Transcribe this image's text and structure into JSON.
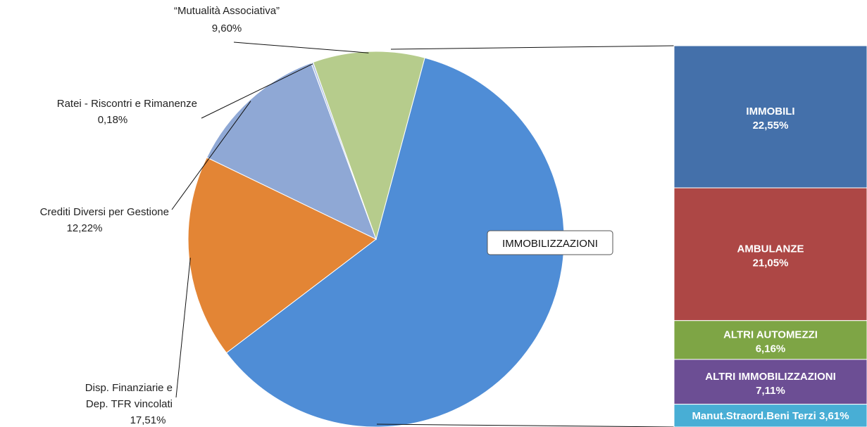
{
  "chart_data": [
    {
      "type": "pie",
      "title": "",
      "slices": [
        {
          "label": "IMMOBILIZZAZIONI",
          "value": 60.48,
          "color": "#4f8dd6",
          "value_label": ""
        },
        {
          "label": "Disp. Finanziarie e Dep. TFR vincolati",
          "label_lines": [
            "Disp. Finanziarie e",
            "Dep. TFR vincolati"
          ],
          "value": 17.51,
          "color": "#e38535",
          "value_label": "17,51%"
        },
        {
          "label": "Crediti Diversi per Gestione",
          "label_lines": [
            "Crediti Diversi per Gestione"
          ],
          "value": 12.22,
          "color": "#8fa8d5",
          "value_label": "12,22%"
        },
        {
          "label": "Ratei - Riscontri e Rimanenze",
          "label_lines": [
            "Ratei - Riscontri e Rimanenze"
          ],
          "value": 0.18,
          "color": "#b3c4e6",
          "value_label": "0,18%"
        },
        {
          "label": "“Mutualità Associativa”",
          "label_lines": [
            "“Mutualità Associativa”"
          ],
          "value": 9.6,
          "color": "#b6cc8c",
          "value_label": "9,60%"
        }
      ],
      "callout": "IMMOBILIZZAZIONI",
      "legend": "none"
    },
    {
      "type": "bar",
      "stacked": true,
      "title": "",
      "breakdown_of": "IMMOBILIZZAZIONI",
      "segments": [
        {
          "label": "IMMOBILI",
          "value": 22.55,
          "value_label": "22,55%",
          "color": "#4470aa"
        },
        {
          "label": "AMBULANZE",
          "value": 21.05,
          "value_label": "21,05%",
          "color": "#ad4745"
        },
        {
          "label": "ALTRI AUTOMEZZI",
          "value": 6.16,
          "value_label": "6,16%",
          "color": "#7ea545"
        },
        {
          "label": "ALTRI IMMOBILIZZAZIONI",
          "value": 7.11,
          "value_label": "7,11%",
          "color": "#6c4e94"
        },
        {
          "label": "Manut.Straord.Beni Terzi",
          "value": 3.61,
          "value_label": "3,61%",
          "color": "#48aed5",
          "inline": true
        }
      ]
    }
  ]
}
